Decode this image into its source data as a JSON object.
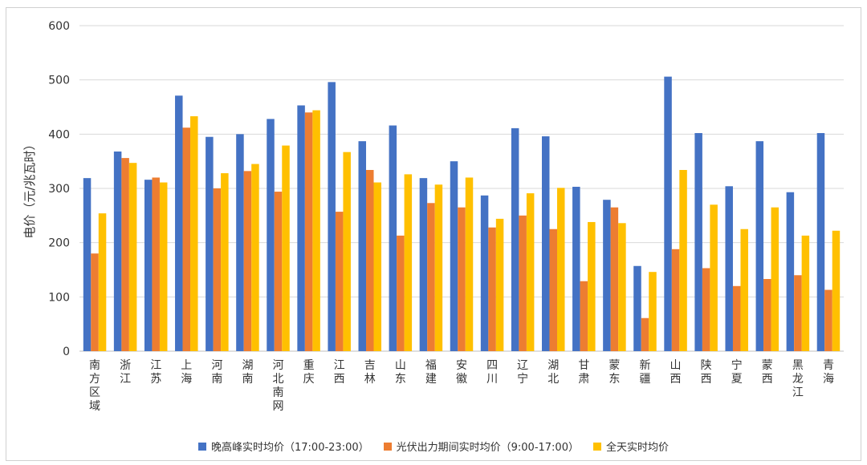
{
  "chart_data": {
    "type": "bar",
    "ylabel": "电价（元/兆瓦时）",
    "ylim": [
      0,
      600
    ],
    "yticks": [
      0,
      100,
      200,
      300,
      400,
      500,
      600
    ],
    "grid": true,
    "legend_position": "bottom",
    "categories": [
      "南方区域",
      "浙江",
      "江苏",
      "上海",
      "河南",
      "湖南",
      "河北南网",
      "重庆",
      "江西",
      "吉林",
      "山东",
      "福建",
      "安徽",
      "四川",
      "辽宁",
      "湖北",
      "甘肃",
      "蒙东",
      "新疆",
      "山西",
      "陕西",
      "宁夏",
      "蒙西",
      "黑龙江",
      "青海"
    ],
    "series": [
      {
        "name": "晚高峰实时均价（17:00-23:00）",
        "color": "#4472C4",
        "values": [
          319,
          368,
          316,
          471,
          395,
          400,
          428,
          453,
          496,
          387,
          416,
          319,
          350,
          287,
          411,
          396,
          303,
          279,
          157,
          506,
          402,
          304,
          387,
          293,
          402
        ]
      },
      {
        "name": "光伏出力期间实时均价（9:00-17:00）",
        "color": "#ED7D31",
        "values": [
          180,
          356,
          320,
          412,
          300,
          332,
          294,
          440,
          257,
          334,
          213,
          273,
          265,
          228,
          250,
          225,
          129,
          265,
          61,
          188,
          153,
          120,
          133,
          140,
          113
        ]
      },
      {
        "name": "全天实时均价",
        "color": "#FFC000",
        "values": [
          254,
          347,
          311,
          433,
          328,
          345,
          379,
          444,
          367,
          311,
          326,
          307,
          320,
          244,
          291,
          301,
          238,
          236,
          146,
          334,
          270,
          225,
          265,
          213,
          222
        ]
      }
    ]
  }
}
